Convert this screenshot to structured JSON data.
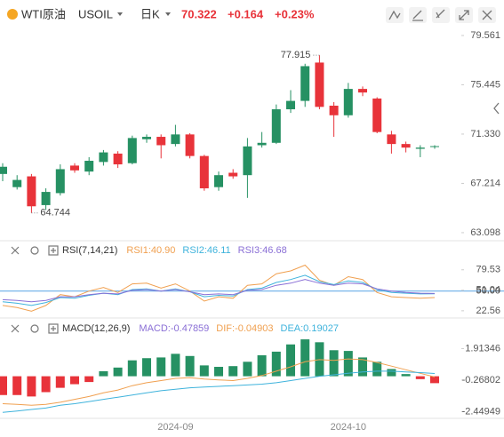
{
  "header": {
    "name": "WTI原油",
    "code": "USOIL",
    "period": "日K",
    "price": 70.322,
    "change": "+0.164",
    "change_pct": "+0.23%"
  },
  "chart_data": [
    {
      "type": "candlestick",
      "categories": [
        null,
        null,
        null,
        null,
        null,
        null,
        null,
        null,
        null,
        null,
        null,
        null,
        "2024-09",
        null,
        null,
        null,
        null,
        null,
        null,
        null,
        null,
        null,
        null,
        null,
        "2024-10",
        null,
        null,
        null,
        null,
        null,
        null
      ],
      "open": [
        68.0,
        66.9,
        67.8,
        65.4,
        66.4,
        68.7,
        68.2,
        69.0,
        69.7,
        68.9,
        70.9,
        71.1,
        70.5,
        71.3,
        69.5,
        66.9,
        68.1,
        67.9,
        70.4,
        70.6,
        73.4,
        74.1,
        77.3,
        73.7,
        72.9,
        75.1,
        74.3,
        71.3,
        70.5,
        70.1,
        70.25
      ],
      "high": [
        68.9,
        67.9,
        68.0,
        66.8,
        68.8,
        68.9,
        69.4,
        70.0,
        69.9,
        71.2,
        71.3,
        71.3,
        72.1,
        71.4,
        69.6,
        68.2,
        68.4,
        71.0,
        71.5,
        73.8,
        75.0,
        77.2,
        77.915,
        74.0,
        75.6,
        75.3,
        74.4,
        71.6,
        70.7,
        70.4,
        70.4
      ],
      "low": [
        67.4,
        66.7,
        64.744,
        65.0,
        66.2,
        68.1,
        67.9,
        68.7,
        68.5,
        68.8,
        70.6,
        69.3,
        70.3,
        69.3,
        66.6,
        66.6,
        67.6,
        66.0,
        70.2,
        70.5,
        73.1,
        73.6,
        73.4,
        71.1,
        72.7,
        74.5,
        71.4,
        69.7,
        69.8,
        69.4,
        70.1
      ],
      "close": [
        68.6,
        67.5,
        65.3,
        66.5,
        68.4,
        68.3,
        69.1,
        69.8,
        68.8,
        71.0,
        71.1,
        70.4,
        71.3,
        69.5,
        66.8,
        67.9,
        67.8,
        70.3,
        70.6,
        73.4,
        74.1,
        77.0,
        73.6,
        72.9,
        75.1,
        74.8,
        71.5,
        70.5,
        70.2,
        70.2,
        70.322
      ],
      "up_color": "#269163",
      "down_color": "#e8333a",
      "ylim": [
        62.65,
        80.15
      ],
      "yticks": [
        79.561,
        75.445,
        {
          "value": 71.33,
          "label": "71.330"
        },
        67.214,
        63.098
      ]
    },
    {
      "type": "line",
      "title": "RSI(7,14,21)",
      "series": [
        {
          "name": "RSI1:40.90",
          "color": "#f0a050",
          "values": [
            30,
            27,
            22,
            30,
            45,
            42,
            50,
            55,
            48,
            60,
            61,
            54,
            60,
            50,
            36,
            42,
            40,
            58,
            60,
            74,
            78,
            86,
            65,
            58,
            70,
            66,
            48,
            42,
            41,
            40,
            40.9
          ]
        },
        {
          "name": "RSI2:46.11",
          "color": "#3fb3dc",
          "values": [
            35,
            33,
            30,
            34,
            41,
            40,
            44,
            47,
            45,
            52,
            53,
            50,
            53,
            49,
            42,
            44,
            43,
            52,
            54,
            62,
            66,
            72,
            63,
            59,
            64,
            62,
            52,
            48,
            47,
            46,
            46.11
          ]
        },
        {
          "name": "RSI3:46.68",
          "color": "#8a6fd6",
          "values": [
            38,
            37,
            35,
            37,
            42,
            42,
            45,
            47,
            46,
            51,
            52,
            50,
            52,
            49,
            45,
            46,
            45,
            51,
            52,
            58,
            61,
            66,
            61,
            58,
            61,
            60,
            53,
            50,
            48,
            47,
            46.68
          ]
        }
      ],
      "reference_line": {
        "value": 50,
        "label": "50.00",
        "color": "#6aaee8"
      },
      "ylim": [
        15,
        99
      ],
      "yticks": [
        79.53,
        51.04,
        22.56
      ]
    },
    {
      "type": "combo",
      "title": "MACD(12,26,9)",
      "series": [
        {
          "name": "MACD:-0.47859",
          "type": "bar",
          "color": "#8a6fd6",
          "up_color": "#269163",
          "down_color": "#e8333a",
          "values": [
            -1.3,
            -1.3,
            -1.4,
            -1.1,
            -0.8,
            -0.55,
            -0.4,
            0.35,
            0.6,
            1.1,
            1.25,
            1.3,
            1.55,
            1.4,
            0.75,
            0.65,
            0.7,
            1.0,
            1.45,
            1.7,
            2.2,
            2.55,
            2.35,
            1.8,
            1.75,
            1.3,
            1.0,
            0.5,
            0.15,
            -0.2,
            -0.47859
          ]
        },
        {
          "name": "DIF:-0.04903",
          "type": "line",
          "color": "#f0a050",
          "values": [
            -1.9,
            -1.95,
            -2.0,
            -1.95,
            -1.8,
            -1.6,
            -1.4,
            -1.15,
            -0.95,
            -0.65,
            -0.45,
            -0.3,
            -0.15,
            -0.1,
            -0.2,
            -0.25,
            -0.3,
            -0.15,
            0.05,
            0.35,
            0.65,
            1.0,
            1.15,
            1.1,
            1.2,
            1.15,
            0.95,
            0.7,
            0.45,
            0.2,
            -0.04903
          ]
        },
        {
          "name": "DEA:0.19027",
          "type": "line",
          "color": "#3fb3dc",
          "values": [
            -2.5,
            -2.4,
            -2.3,
            -2.2,
            -2.0,
            -1.9,
            -1.75,
            -1.6,
            -1.45,
            -1.3,
            -1.15,
            -1.0,
            -0.9,
            -0.8,
            -0.75,
            -0.7,
            -0.65,
            -0.6,
            -0.55,
            -0.45,
            -0.3,
            -0.15,
            0.0,
            0.1,
            0.2,
            0.3,
            0.35,
            0.35,
            0.3,
            0.25,
            0.19027
          ]
        }
      ],
      "ylim": [
        -2.85,
        2.8
      ],
      "yticks": [
        1.91346,
        -0.26802,
        -2.44949
      ]
    }
  ]
}
